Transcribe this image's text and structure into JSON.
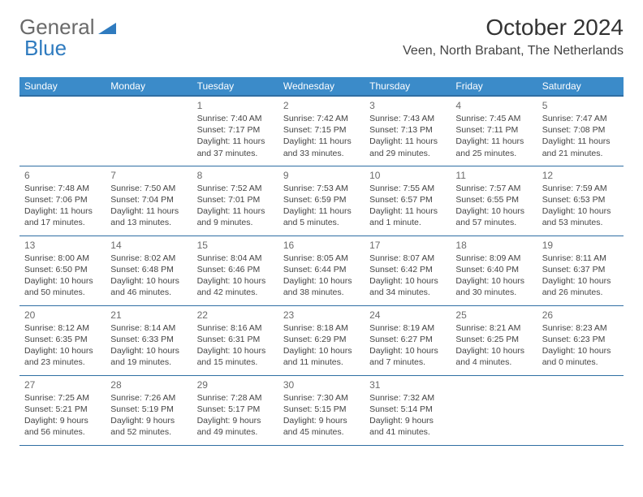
{
  "logo": {
    "text_general": "General",
    "text_blue": "Blue"
  },
  "header": {
    "title": "October 2024",
    "location": "Veen, North Brabant, The Netherlands"
  },
  "colors": {
    "header_bg": "#3b8bc9",
    "header_text": "#ffffff",
    "rule": "#2f6fa3",
    "daynum": "#6b6b6b",
    "body_text": "#444444",
    "logo_gray": "#6a6a6a",
    "logo_blue": "#2f7bbf"
  },
  "typography": {
    "title_fontsize": 28,
    "location_fontsize": 16,
    "dayhead_fontsize": 12,
    "daynum_fontsize": 12,
    "cell_fontsize": 10.5
  },
  "day_names": [
    "Sunday",
    "Monday",
    "Tuesday",
    "Wednesday",
    "Thursday",
    "Friday",
    "Saturday"
  ],
  "weeks": [
    [
      {
        "day": "",
        "lines": []
      },
      {
        "day": "",
        "lines": []
      },
      {
        "day": "1",
        "lines": [
          "Sunrise: 7:40 AM",
          "Sunset: 7:17 PM",
          "Daylight: 11 hours",
          "and 37 minutes."
        ]
      },
      {
        "day": "2",
        "lines": [
          "Sunrise: 7:42 AM",
          "Sunset: 7:15 PM",
          "Daylight: 11 hours",
          "and 33 minutes."
        ]
      },
      {
        "day": "3",
        "lines": [
          "Sunrise: 7:43 AM",
          "Sunset: 7:13 PM",
          "Daylight: 11 hours",
          "and 29 minutes."
        ]
      },
      {
        "day": "4",
        "lines": [
          "Sunrise: 7:45 AM",
          "Sunset: 7:11 PM",
          "Daylight: 11 hours",
          "and 25 minutes."
        ]
      },
      {
        "day": "5",
        "lines": [
          "Sunrise: 7:47 AM",
          "Sunset: 7:08 PM",
          "Daylight: 11 hours",
          "and 21 minutes."
        ]
      }
    ],
    [
      {
        "day": "6",
        "lines": [
          "Sunrise: 7:48 AM",
          "Sunset: 7:06 PM",
          "Daylight: 11 hours",
          "and 17 minutes."
        ]
      },
      {
        "day": "7",
        "lines": [
          "Sunrise: 7:50 AM",
          "Sunset: 7:04 PM",
          "Daylight: 11 hours",
          "and 13 minutes."
        ]
      },
      {
        "day": "8",
        "lines": [
          "Sunrise: 7:52 AM",
          "Sunset: 7:01 PM",
          "Daylight: 11 hours",
          "and 9 minutes."
        ]
      },
      {
        "day": "9",
        "lines": [
          "Sunrise: 7:53 AM",
          "Sunset: 6:59 PM",
          "Daylight: 11 hours",
          "and 5 minutes."
        ]
      },
      {
        "day": "10",
        "lines": [
          "Sunrise: 7:55 AM",
          "Sunset: 6:57 PM",
          "Daylight: 11 hours",
          "and 1 minute."
        ]
      },
      {
        "day": "11",
        "lines": [
          "Sunrise: 7:57 AM",
          "Sunset: 6:55 PM",
          "Daylight: 10 hours",
          "and 57 minutes."
        ]
      },
      {
        "day": "12",
        "lines": [
          "Sunrise: 7:59 AM",
          "Sunset: 6:53 PM",
          "Daylight: 10 hours",
          "and 53 minutes."
        ]
      }
    ],
    [
      {
        "day": "13",
        "lines": [
          "Sunrise: 8:00 AM",
          "Sunset: 6:50 PM",
          "Daylight: 10 hours",
          "and 50 minutes."
        ]
      },
      {
        "day": "14",
        "lines": [
          "Sunrise: 8:02 AM",
          "Sunset: 6:48 PM",
          "Daylight: 10 hours",
          "and 46 minutes."
        ]
      },
      {
        "day": "15",
        "lines": [
          "Sunrise: 8:04 AM",
          "Sunset: 6:46 PM",
          "Daylight: 10 hours",
          "and 42 minutes."
        ]
      },
      {
        "day": "16",
        "lines": [
          "Sunrise: 8:05 AM",
          "Sunset: 6:44 PM",
          "Daylight: 10 hours",
          "and 38 minutes."
        ]
      },
      {
        "day": "17",
        "lines": [
          "Sunrise: 8:07 AM",
          "Sunset: 6:42 PM",
          "Daylight: 10 hours",
          "and 34 minutes."
        ]
      },
      {
        "day": "18",
        "lines": [
          "Sunrise: 8:09 AM",
          "Sunset: 6:40 PM",
          "Daylight: 10 hours",
          "and 30 minutes."
        ]
      },
      {
        "day": "19",
        "lines": [
          "Sunrise: 8:11 AM",
          "Sunset: 6:37 PM",
          "Daylight: 10 hours",
          "and 26 minutes."
        ]
      }
    ],
    [
      {
        "day": "20",
        "lines": [
          "Sunrise: 8:12 AM",
          "Sunset: 6:35 PM",
          "Daylight: 10 hours",
          "and 23 minutes."
        ]
      },
      {
        "day": "21",
        "lines": [
          "Sunrise: 8:14 AM",
          "Sunset: 6:33 PM",
          "Daylight: 10 hours",
          "and 19 minutes."
        ]
      },
      {
        "day": "22",
        "lines": [
          "Sunrise: 8:16 AM",
          "Sunset: 6:31 PM",
          "Daylight: 10 hours",
          "and 15 minutes."
        ]
      },
      {
        "day": "23",
        "lines": [
          "Sunrise: 8:18 AM",
          "Sunset: 6:29 PM",
          "Daylight: 10 hours",
          "and 11 minutes."
        ]
      },
      {
        "day": "24",
        "lines": [
          "Sunrise: 8:19 AM",
          "Sunset: 6:27 PM",
          "Daylight: 10 hours",
          "and 7 minutes."
        ]
      },
      {
        "day": "25",
        "lines": [
          "Sunrise: 8:21 AM",
          "Sunset: 6:25 PM",
          "Daylight: 10 hours",
          "and 4 minutes."
        ]
      },
      {
        "day": "26",
        "lines": [
          "Sunrise: 8:23 AM",
          "Sunset: 6:23 PM",
          "Daylight: 10 hours",
          "and 0 minutes."
        ]
      }
    ],
    [
      {
        "day": "27",
        "lines": [
          "Sunrise: 7:25 AM",
          "Sunset: 5:21 PM",
          "Daylight: 9 hours",
          "and 56 minutes."
        ]
      },
      {
        "day": "28",
        "lines": [
          "Sunrise: 7:26 AM",
          "Sunset: 5:19 PM",
          "Daylight: 9 hours",
          "and 52 minutes."
        ]
      },
      {
        "day": "29",
        "lines": [
          "Sunrise: 7:28 AM",
          "Sunset: 5:17 PM",
          "Daylight: 9 hours",
          "and 49 minutes."
        ]
      },
      {
        "day": "30",
        "lines": [
          "Sunrise: 7:30 AM",
          "Sunset: 5:15 PM",
          "Daylight: 9 hours",
          "and 45 minutes."
        ]
      },
      {
        "day": "31",
        "lines": [
          "Sunrise: 7:32 AM",
          "Sunset: 5:14 PM",
          "Daylight: 9 hours",
          "and 41 minutes."
        ]
      },
      {
        "day": "",
        "lines": []
      },
      {
        "day": "",
        "lines": []
      }
    ]
  ]
}
